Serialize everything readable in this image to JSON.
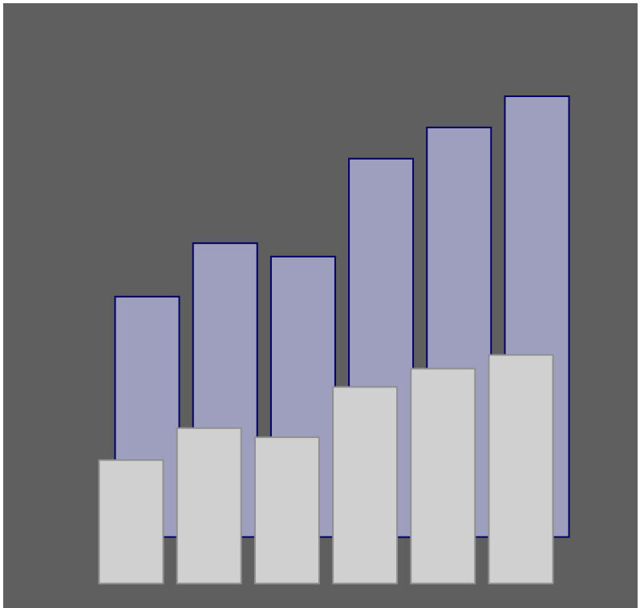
{
  "chart_data": {
    "type": "bar",
    "title": "",
    "xlabel": "",
    "ylabel": "",
    "grid": false,
    "legend": "none",
    "categories": [
      "",
      "",
      "",
      "",
      "",
      ""
    ],
    "ylim": [
      0,
      1
    ],
    "series": [
      {
        "values": [
          0.54,
          0.66,
          0.63,
          0.85,
          0.92,
          0.99
        ],
        "fill": "#9e9ebf",
        "stroke": "#000066"
      },
      {
        "values": [
          0.27,
          0.34,
          0.32,
          0.43,
          0.47,
          0.5
        ],
        "fill": "#d0d0d0",
        "stroke": "#909090"
      }
    ],
    "colors": {
      "background": "#5f5f5f",
      "frame": "#ffffff"
    }
  }
}
